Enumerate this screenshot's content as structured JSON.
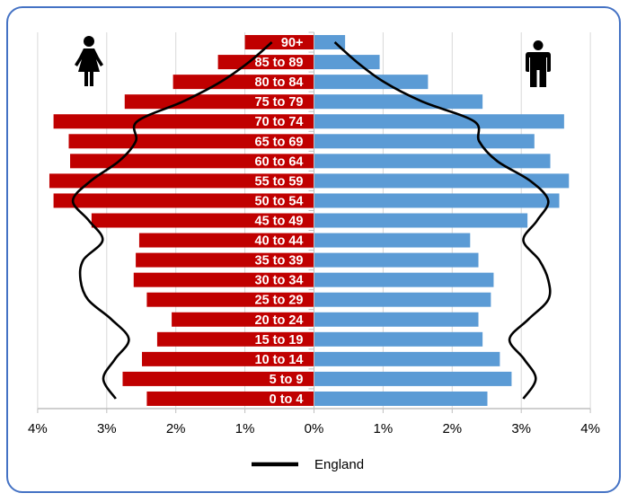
{
  "chart_data": {
    "type": "bar",
    "subtype": "population-pyramid",
    "title": "",
    "xlabel": "",
    "ylabel": "",
    "xlim": [
      -4,
      4
    ],
    "x_ticks": [
      -4,
      -3,
      -2,
      -1,
      0,
      1,
      2,
      3,
      4
    ],
    "x_tick_labels": [
      "4%",
      "3%",
      "2%",
      "1%",
      "0%",
      "1%",
      "2%",
      "3%",
      "4%"
    ],
    "grid": "vertical",
    "categories": [
      "90+",
      "85 to 89",
      "80 to 84",
      "75 to 79",
      "70 to 74",
      "65 to 69",
      "60 to 64",
      "55 to 59",
      "50 to 54",
      "45 to 49",
      "40 to 44",
      "35 to 39",
      "30 to 34",
      "25 to 29",
      "20 to 24",
      "15 to 19",
      "10 to 14",
      "5 to 9",
      "0 to 4"
    ],
    "series": [
      {
        "name": "Female",
        "side": "left",
        "color": "#C00000",
        "icon": "female-icon",
        "values": [
          1.0,
          1.39,
          2.04,
          2.74,
          3.77,
          3.55,
          3.53,
          3.83,
          3.77,
          3.22,
          2.53,
          2.58,
          2.61,
          2.42,
          2.06,
          2.27,
          2.49,
          2.77,
          2.42
        ]
      },
      {
        "name": "Male",
        "side": "right",
        "color": "#5B9BD5",
        "icon": "male-icon",
        "values": [
          0.45,
          0.95,
          1.65,
          2.44,
          3.62,
          3.19,
          3.42,
          3.69,
          3.55,
          3.09,
          2.26,
          2.38,
          2.6,
          2.56,
          2.38,
          2.44,
          2.69,
          2.86,
          2.51
        ]
      },
      {
        "name": "England (Female)",
        "type": "line",
        "side": "left",
        "color": "#000000",
        "values": [
          0.61,
          0.94,
          1.35,
          1.9,
          2.56,
          2.58,
          2.82,
          3.23,
          3.49,
          3.26,
          3.06,
          3.34,
          3.38,
          3.27,
          2.93,
          2.68,
          2.88,
          3.05,
          2.87
        ]
      },
      {
        "name": "England (Male)",
        "type": "line",
        "side": "right",
        "color": "#000000",
        "values": [
          0.3,
          0.62,
          1.01,
          1.57,
          2.32,
          2.39,
          2.65,
          3.13,
          3.39,
          3.23,
          3.03,
          3.26,
          3.39,
          3.39,
          3.1,
          2.83,
          3.04,
          3.21,
          3.03
        ]
      }
    ],
    "legend": {
      "position": "bottom",
      "entries": [
        {
          "label": "England",
          "style": "line",
          "color": "#000000"
        }
      ]
    }
  },
  "colors": {
    "frame_border": "#4472C4",
    "gridline": "#D9D9D9",
    "axis": "#BFBFBF"
  }
}
